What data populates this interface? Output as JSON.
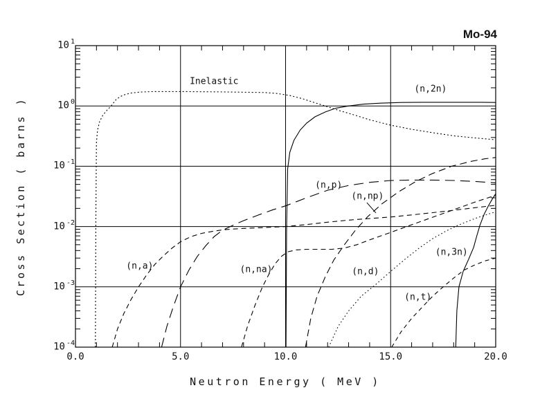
{
  "chart_data": {
    "type": "line",
    "title": "Mo-94",
    "xlabel": "Neutron Energy ( MeV )",
    "ylabel": "Cross Section ( barns )",
    "background_color": "#ffffff",
    "line_color": "#000000",
    "grid": true,
    "legend_position": "inline-labels",
    "x_axis": {
      "label": "Neutron Energy ( MeV )",
      "min": 0,
      "max": 20,
      "tick_values": [
        0,
        5,
        10,
        15,
        20
      ],
      "tick_labels": [
        "0.0",
        "5.0",
        "10.0",
        "15.0",
        "20.0"
      ],
      "minor_tick_step": 1,
      "gridline_values": [
        5,
        10,
        15
      ]
    },
    "y_axis": {
      "label": "Cross Section ( barns )",
      "scale": "log",
      "min": 0.0001,
      "max": 10,
      "base_label": "10",
      "tick_exponents": [
        1,
        0,
        -1,
        -2,
        -3,
        -4
      ],
      "gridline_exponents": [
        0,
        -1,
        -2,
        -3
      ],
      "log_max": 1,
      "decades": 5
    },
    "series": [
      {
        "id": "inelastic",
        "label": "Inelastic",
        "style": "dense-dot",
        "label_anchor": {
          "e": 6.6,
          "s": 2.5
        },
        "points": [
          [
            0.95,
            0.0001
          ],
          [
            0.97,
            0.01
          ],
          [
            1.0,
            0.25
          ],
          [
            1.05,
            0.4
          ],
          [
            1.15,
            0.55
          ],
          [
            1.3,
            0.7
          ],
          [
            1.5,
            0.85
          ],
          [
            1.7,
            1.0
          ],
          [
            1.95,
            1.3
          ],
          [
            2.25,
            1.5
          ],
          [
            2.6,
            1.63
          ],
          [
            3.1,
            1.7
          ],
          [
            3.7,
            1.73
          ],
          [
            5.0,
            1.73
          ],
          [
            7.0,
            1.71
          ],
          [
            9.0,
            1.67
          ],
          [
            9.6,
            1.61
          ],
          [
            10.2,
            1.49
          ],
          [
            10.8,
            1.32
          ],
          [
            11.4,
            1.13
          ],
          [
            12.0,
            0.97
          ],
          [
            12.6,
            0.83
          ],
          [
            13.2,
            0.72
          ],
          [
            14.0,
            0.59
          ],
          [
            15.0,
            0.48
          ],
          [
            16.0,
            0.41
          ],
          [
            17.0,
            0.36
          ],
          [
            18.0,
            0.32
          ],
          [
            19.0,
            0.295
          ],
          [
            20.0,
            0.275
          ]
        ]
      },
      {
        "id": "n-2n",
        "label": "(n,2n)",
        "style": "solid",
        "label_anchor": {
          "e": 16.9,
          "s": 1.9
        },
        "points": [
          [
            10.02,
            0.0001
          ],
          [
            10.05,
            0.01
          ],
          [
            10.1,
            0.09
          ],
          [
            10.2,
            0.17
          ],
          [
            10.4,
            0.27
          ],
          [
            10.7,
            0.4
          ],
          [
            11.0,
            0.52
          ],
          [
            11.4,
            0.66
          ],
          [
            11.9,
            0.8
          ],
          [
            12.4,
            0.92
          ],
          [
            13.0,
            1.0
          ],
          [
            13.7,
            1.07
          ],
          [
            14.5,
            1.11
          ],
          [
            15.5,
            1.14
          ],
          [
            16.5,
            1.15
          ],
          [
            17.5,
            1.15
          ],
          [
            18.5,
            1.15
          ],
          [
            19.3,
            1.15
          ],
          [
            20.0,
            1.14
          ]
        ]
      },
      {
        "id": "n-p",
        "label": "(n,p)",
        "style": "long-dash",
        "label_anchor": {
          "e": 12.05,
          "s": 0.048
        },
        "points": [
          [
            4.1,
            0.0001
          ],
          [
            4.35,
            0.00022
          ],
          [
            4.65,
            0.00046
          ],
          [
            5.0,
            0.001
          ],
          [
            5.4,
            0.0019
          ],
          [
            5.8,
            0.0032
          ],
          [
            6.2,
            0.0048
          ],
          [
            6.6,
            0.0068
          ],
          [
            7.0,
            0.0087
          ],
          [
            7.5,
            0.0105
          ],
          [
            8.0,
            0.0125
          ],
          [
            8.7,
            0.0155
          ],
          [
            9.4,
            0.019
          ],
          [
            10.0,
            0.022
          ],
          [
            11.0,
            0.03
          ],
          [
            12.0,
            0.04
          ],
          [
            13.0,
            0.048
          ],
          [
            14.0,
            0.054
          ],
          [
            15.0,
            0.058
          ],
          [
            16.0,
            0.059
          ],
          [
            17.0,
            0.059
          ],
          [
            18.0,
            0.058
          ],
          [
            19.0,
            0.056
          ],
          [
            20.0,
            0.053
          ]
        ]
      },
      {
        "id": "n-np",
        "label": "(n,np)",
        "style": "medium-dash",
        "label_anchor": {
          "e": 13.9,
          "s": 0.032
        },
        "pointer": {
          "from": {
            "e": 13.87,
            "s": 0.0249
          },
          "to": {
            "e": 14.3,
            "s": 0.0168
          }
        },
        "points": [
          [
            10.95,
            0.0001
          ],
          [
            11.2,
            0.0003
          ],
          [
            11.5,
            0.0007
          ],
          [
            11.9,
            0.0015
          ],
          [
            12.3,
            0.0028
          ],
          [
            12.8,
            0.005
          ],
          [
            13.3,
            0.0085
          ],
          [
            13.9,
            0.0145
          ],
          [
            14.6,
            0.024
          ],
          [
            15.4,
            0.038
          ],
          [
            16.2,
            0.056
          ],
          [
            17.0,
            0.076
          ],
          [
            17.9,
            0.1
          ],
          [
            18.8,
            0.12
          ],
          [
            19.5,
            0.133
          ],
          [
            20.0,
            0.14
          ]
        ]
      },
      {
        "id": "n-a",
        "label": "(n,a)",
        "style": "dash",
        "label_anchor": {
          "e": 3.06,
          "s": 0.0022
        },
        "points": [
          [
            1.75,
            0.0001
          ],
          [
            2.0,
            0.0002
          ],
          [
            2.3,
            0.00036
          ],
          [
            2.65,
            0.00062
          ],
          [
            3.0,
            0.001
          ],
          [
            3.4,
            0.0016
          ],
          [
            3.8,
            0.0024
          ],
          [
            4.2,
            0.0033
          ],
          [
            4.6,
            0.0044
          ],
          [
            5.0,
            0.0056
          ],
          [
            5.5,
            0.0068
          ],
          [
            6.0,
            0.0077
          ],
          [
            6.5,
            0.0083
          ],
          [
            7.0,
            0.0088
          ],
          [
            7.5,
            0.0091
          ],
          [
            8.0,
            0.0093
          ],
          [
            9.0,
            0.0096
          ],
          [
            10.0,
            0.01
          ],
          [
            11.0,
            0.0108
          ],
          [
            12.0,
            0.0118
          ],
          [
            13.0,
            0.0128
          ],
          [
            14.0,
            0.0136
          ],
          [
            15.0,
            0.0144
          ],
          [
            16.0,
            0.0156
          ],
          [
            17.0,
            0.017
          ],
          [
            18.0,
            0.0186
          ],
          [
            19.0,
            0.0205
          ],
          [
            20.0,
            0.0225
          ]
        ]
      },
      {
        "id": "n-na",
        "label": "(n,na)",
        "style": "dash",
        "label_anchor": {
          "e": 8.6,
          "s": 0.0019
        },
        "points": [
          [
            7.9,
            0.0001
          ],
          [
            8.2,
            0.00023
          ],
          [
            8.55,
            0.0005
          ],
          [
            8.9,
            0.001
          ],
          [
            9.2,
            0.0016
          ],
          [
            9.5,
            0.0024
          ],
          [
            9.8,
            0.0032
          ],
          [
            10.1,
            0.0038
          ],
          [
            10.5,
            0.0041
          ],
          [
            11.0,
            0.0042
          ],
          [
            11.6,
            0.0042
          ],
          [
            12.2,
            0.0042
          ],
          [
            12.8,
            0.0044
          ],
          [
            13.4,
            0.005
          ],
          [
            14.0,
            0.006
          ],
          [
            15.0,
            0.008
          ],
          [
            16.0,
            0.0107
          ],
          [
            17.0,
            0.0143
          ],
          [
            18.0,
            0.019
          ],
          [
            19.0,
            0.0253
          ],
          [
            20.0,
            0.033
          ]
        ]
      },
      {
        "id": "n-d",
        "label": "(n,d)",
        "style": "dot",
        "label_anchor": {
          "e": 13.8,
          "s": 0.0018
        },
        "points": [
          [
            12.05,
            0.0001
          ],
          [
            12.5,
            0.00022
          ],
          [
            13.0,
            0.0004
          ],
          [
            13.6,
            0.0007
          ],
          [
            14.3,
            0.0011
          ],
          [
            15.0,
            0.0018
          ],
          [
            15.7,
            0.0029
          ],
          [
            16.4,
            0.0045
          ],
          [
            17.0,
            0.0063
          ],
          [
            17.6,
            0.0083
          ],
          [
            18.2,
            0.0105
          ],
          [
            19.0,
            0.0135
          ],
          [
            19.5,
            0.0155
          ],
          [
            20.0,
            0.0175
          ]
        ]
      },
      {
        "id": "n-3n",
        "label": "(n,3n)",
        "style": "solid",
        "label_anchor": {
          "e": 17.9,
          "s": 0.0037
        },
        "points": [
          [
            18.1,
            0.0001
          ],
          [
            18.15,
            0.0004
          ],
          [
            18.25,
            0.001
          ],
          [
            18.45,
            0.0018
          ],
          [
            18.7,
            0.0028
          ],
          [
            18.95,
            0.0045
          ],
          [
            19.1,
            0.007
          ],
          [
            19.25,
            0.0105
          ],
          [
            19.45,
            0.016
          ],
          [
            19.65,
            0.022
          ],
          [
            19.85,
            0.029
          ],
          [
            20.0,
            0.035
          ]
        ]
      },
      {
        "id": "n-t",
        "label": "(n,t)",
        "style": "dash-small",
        "label_anchor": {
          "e": 16.3,
          "s": 0.00067
        },
        "points": [
          [
            15.05,
            0.0001
          ],
          [
            15.5,
            0.00018
          ],
          [
            16.0,
            0.0003
          ],
          [
            16.5,
            0.00046
          ],
          [
            17.0,
            0.0007
          ],
          [
            17.5,
            0.001
          ],
          [
            18.0,
            0.0014
          ],
          [
            18.5,
            0.0019
          ],
          [
            19.0,
            0.0023
          ],
          [
            19.5,
            0.0027
          ],
          [
            20.0,
            0.003
          ]
        ]
      }
    ]
  }
}
